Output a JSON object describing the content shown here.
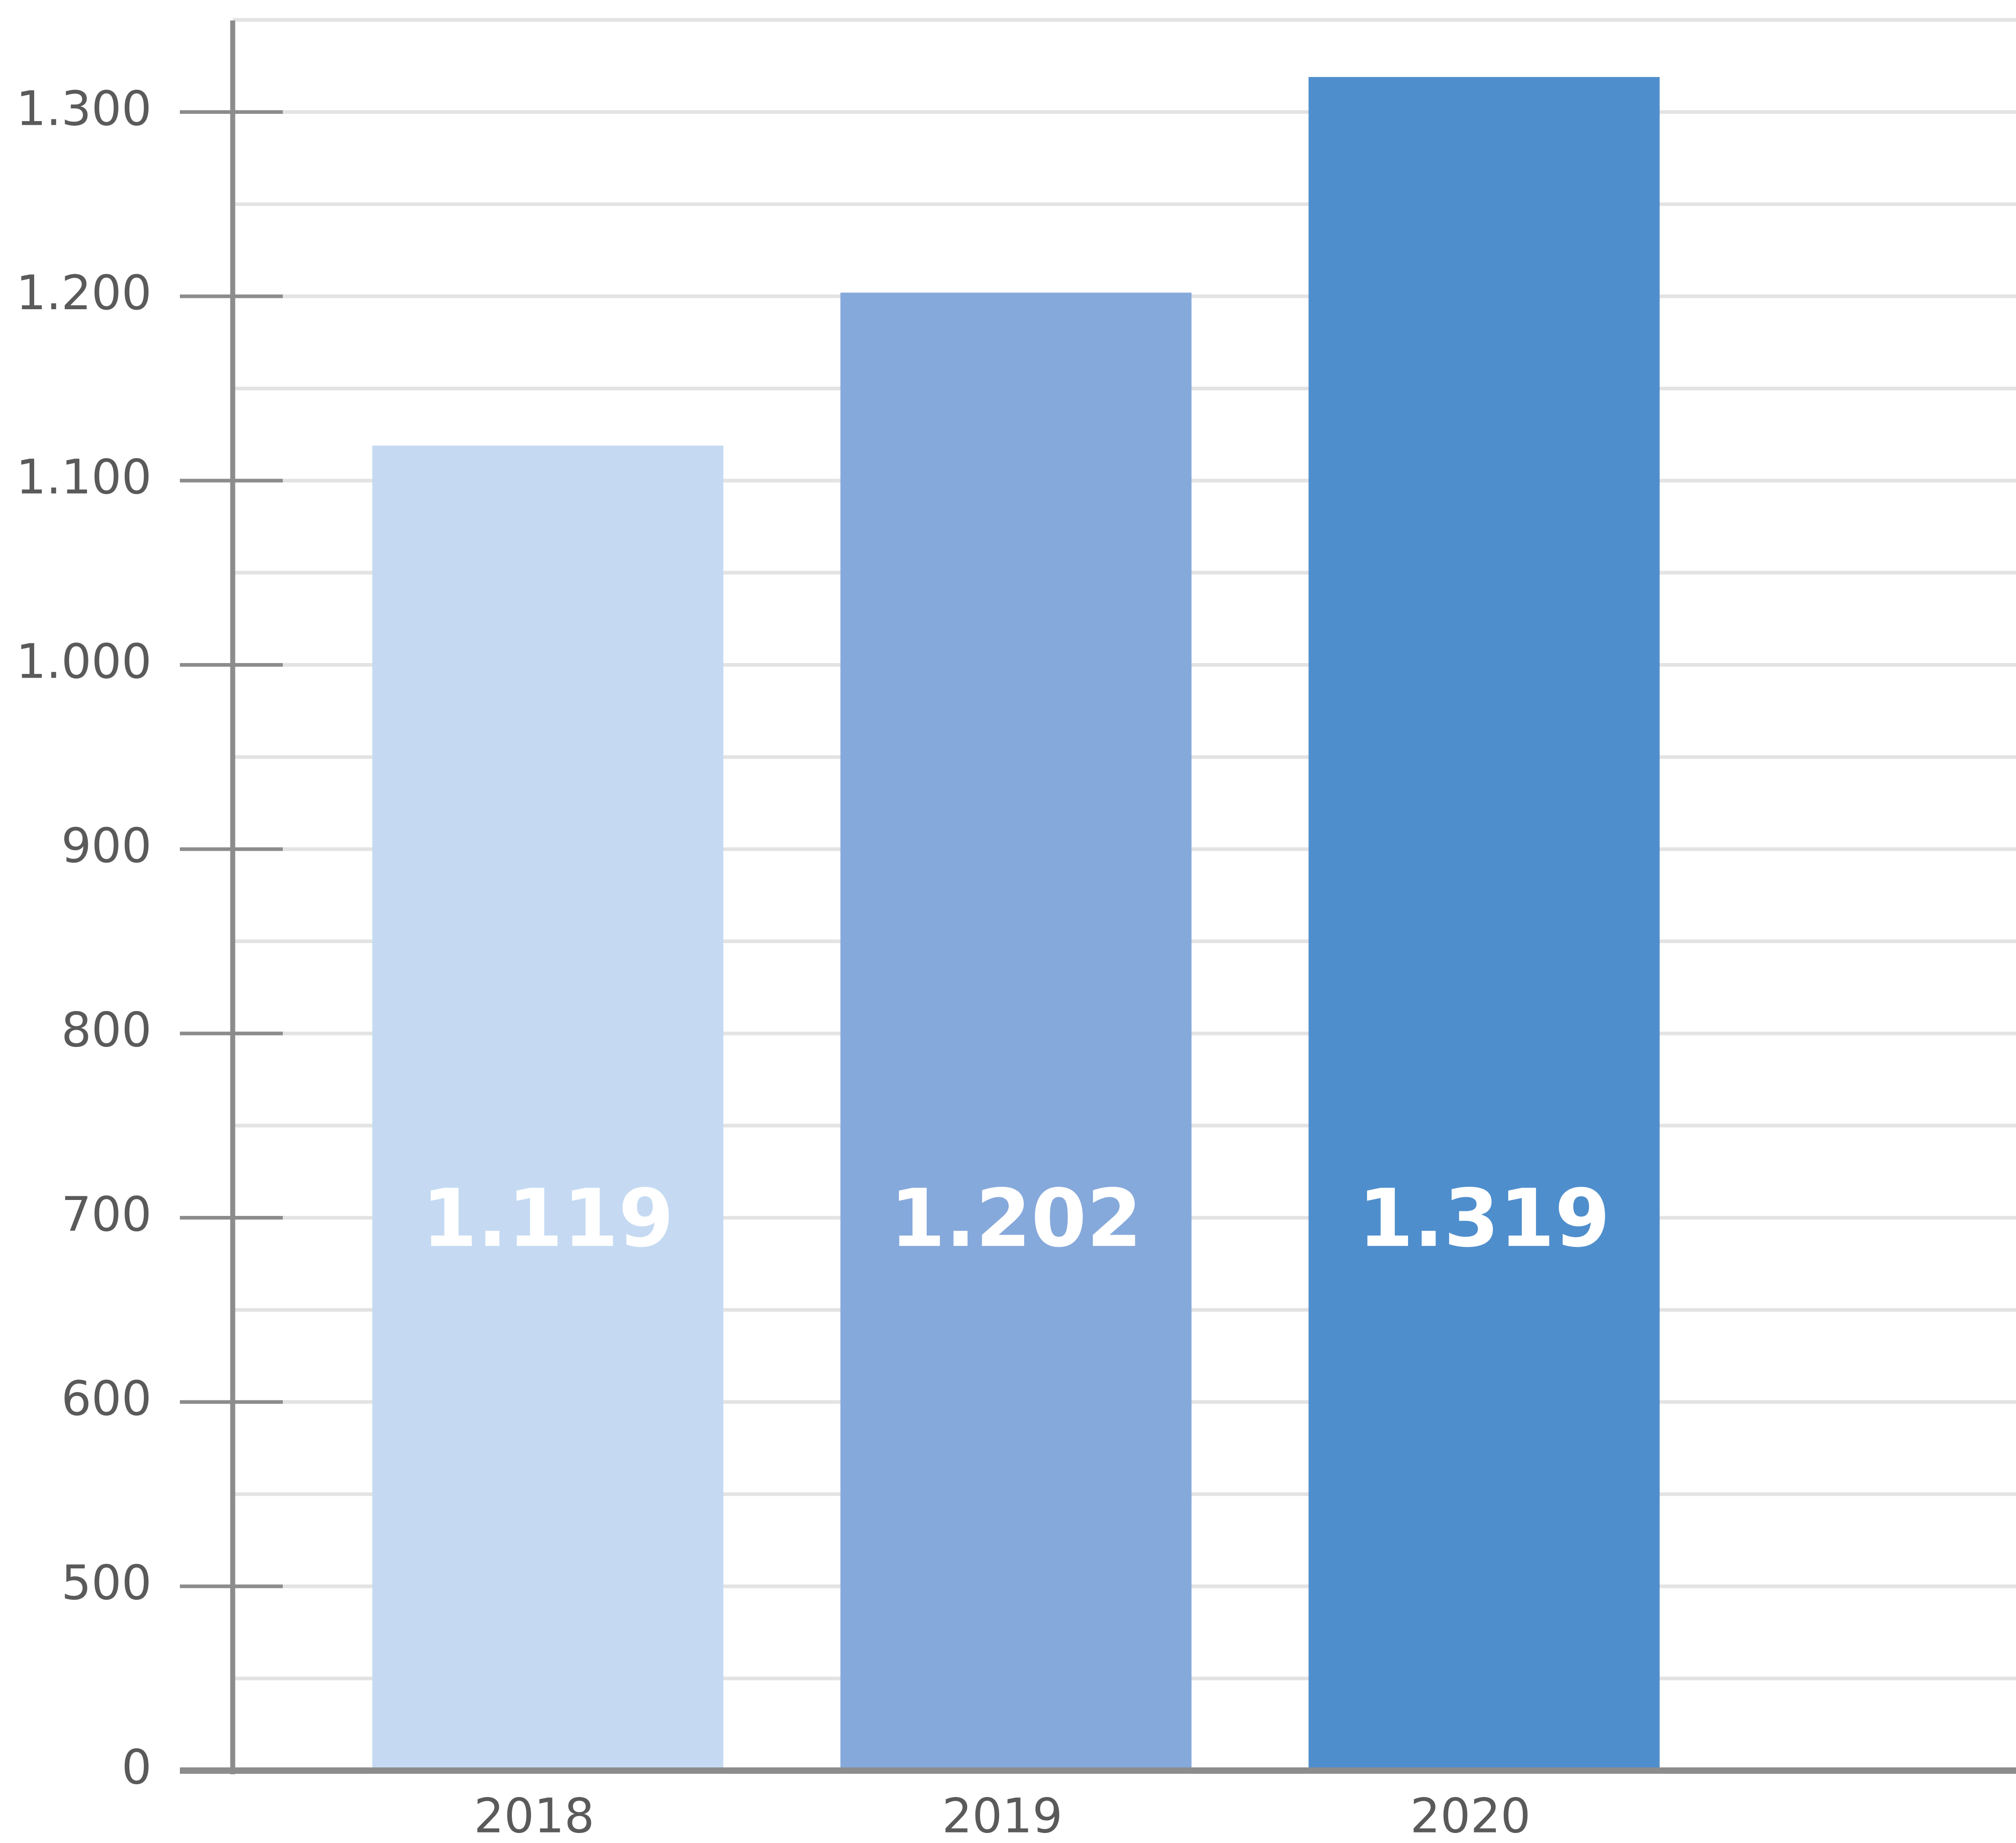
{
  "chart_data": {
    "type": "bar",
    "categories": [
      "2018",
      "2019",
      "2020"
    ],
    "values": [
      1119,
      1202,
      1319
    ],
    "value_labels": [
      "1.119",
      "1.202",
      "1.319"
    ],
    "colors": [
      "#c5daf2",
      "#86a9db",
      "#4f8ecc"
    ],
    "ylim": [
      0,
      1350
    ],
    "yticks": [
      0,
      500,
      600,
      700,
      800,
      900,
      {
        "value": 1000,
        "label": "1.000"
      },
      {
        "value": 1100,
        "label": "1.100"
      },
      {
        "value": 1200,
        "label": "1.200"
      },
      {
        "value": 1300,
        "label": "1.300"
      }
    ],
    "grid": true,
    "minor_grid": true
  }
}
